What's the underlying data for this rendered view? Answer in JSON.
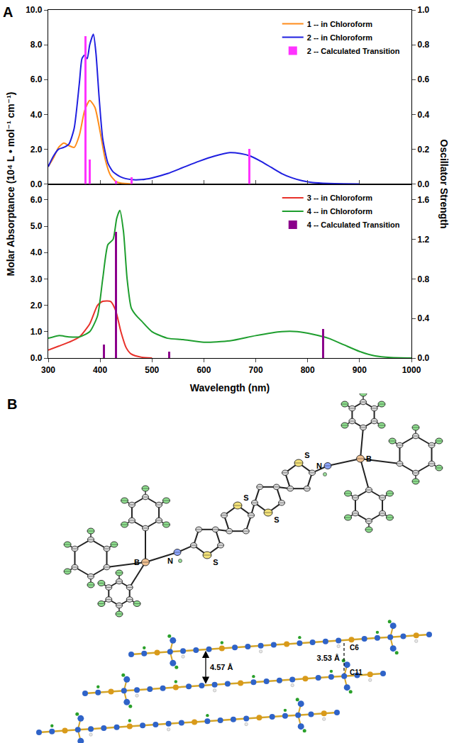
{
  "panel_labels": [
    "A",
    "B"
  ],
  "axis_titles": {
    "x": "Wavelength (nm)",
    "y": "Molar Absorptance (10⁴ L • mol⁻¹ cm⁻¹)",
    "y2": "Oscillator Strength"
  },
  "chart_data": [
    {
      "type": "line",
      "legend": "upper right",
      "grid": false,
      "tick_labels": "y",
      "xlim": [
        300,
        1000
      ],
      "xticks": [
        300,
        400,
        500,
        600,
        700,
        800,
        900,
        1000
      ],
      "ylim": [
        0,
        10
      ],
      "yticks": [
        {
          "value": 0,
          "label": "0.0"
        },
        {
          "value": 2,
          "label": "2.0"
        },
        {
          "value": 4,
          "label": "4.0"
        },
        {
          "value": 6,
          "label": "6.0"
        },
        {
          "value": 8,
          "label": "8.0"
        },
        {
          "value": 10,
          "label": "10.0"
        }
      ],
      "y2lim": [
        0,
        1
      ],
      "y2ticks": [
        {
          "value": 0,
          "label": "0.0"
        },
        0.2,
        0.4,
        0.6,
        0.8,
        {
          "value": 1,
          "label": "1.0"
        }
      ],
      "series": [
        {
          "name": "1 -- in Chloroform",
          "type": "line",
          "color": "#ff8c1a",
          "x": [
            300,
            310,
            320,
            330,
            340,
            350,
            360,
            370,
            380,
            390,
            400,
            410,
            420,
            430,
            440,
            460
          ],
          "values": [
            1.0,
            1.5,
            2.1,
            2.35,
            2.2,
            2.1,
            2.8,
            4.2,
            4.8,
            4.4,
            3.0,
            1.4,
            0.5,
            0.15,
            0.05,
            0
          ]
        },
        {
          "name": "2 -- in Chloroform",
          "type": "line",
          "color": "#1f1fe0",
          "x": [
            300,
            310,
            320,
            330,
            340,
            350,
            360,
            365,
            370,
            375,
            380,
            387,
            392,
            398,
            405,
            415,
            425,
            440,
            460,
            480,
            500,
            530,
            560,
            590,
            620,
            650,
            670,
            690,
            710,
            730,
            750,
            770,
            790,
            810,
            840,
            870,
            900
          ],
          "values": [
            1.0,
            1.6,
            2.0,
            2.1,
            2.3,
            3.2,
            5.8,
            7.2,
            7.4,
            7.2,
            8.0,
            8.6,
            7.5,
            5.0,
            2.6,
            1.2,
            0.7,
            0.4,
            0.25,
            0.25,
            0.35,
            0.6,
            0.95,
            1.3,
            1.6,
            1.8,
            1.75,
            1.6,
            1.3,
            0.95,
            0.6,
            0.35,
            0.18,
            0.08,
            0.03,
            0.01,
            0
          ]
        },
        {
          "name": "2 -- Calculated Transition",
          "type": "bar",
          "axis": "y2",
          "color": "#ff33ff",
          "x": [
            372,
            380,
            430,
            461,
            688
          ],
          "values": [
            0.85,
            0.14,
            0.02,
            0.04,
            0.2
          ]
        }
      ]
    },
    {
      "type": "line",
      "legend": "upper right",
      "grid": false,
      "xlim": [
        300,
        1000
      ],
      "xticks": [
        300,
        400,
        500,
        600,
        700,
        800,
        900,
        1000
      ],
      "ylim": [
        0,
        6.6
      ],
      "yticks": [
        {
          "value": 0,
          "label": "0.0"
        },
        {
          "value": 1,
          "label": "1.0"
        },
        {
          "value": 2,
          "label": "2.0"
        },
        {
          "value": 3,
          "label": "3.0"
        },
        {
          "value": 4,
          "label": "4.0"
        },
        {
          "value": 5,
          "label": "5.0"
        },
        {
          "value": 6,
          "label": "6.0"
        }
      ],
      "y2lim": [
        0,
        1.76
      ],
      "y2ticks": [
        {
          "value": 0,
          "label": "0.0"
        },
        0.4,
        0.8,
        1.2,
        1.6
      ],
      "series": [
        {
          "name": "3 -- in Chloroform",
          "type": "line",
          "color": "#e8312a",
          "x": [
            300,
            320,
            340,
            360,
            380,
            395,
            405,
            420,
            430,
            440,
            450,
            460,
            480,
            500
          ],
          "values": [
            0.3,
            0.45,
            0.6,
            0.8,
            1.3,
            2.0,
            2.15,
            2.15,
            1.8,
            1.0,
            0.4,
            0.15,
            0.03,
            0
          ]
        },
        {
          "name": "4 -- in Chloroform",
          "type": "line",
          "color": "#1e9e2e",
          "x": [
            300,
            320,
            340,
            360,
            380,
            395,
            405,
            415,
            425,
            432,
            438,
            445,
            452,
            460,
            470,
            480,
            500,
            530,
            560,
            600,
            650,
            700,
            750,
            780,
            810,
            840,
            870,
            900,
            930,
            960,
            1000
          ],
          "values": [
            0.75,
            0.85,
            0.8,
            0.8,
            1.0,
            1.6,
            3.0,
            4.3,
            4.5,
            5.3,
            5.6,
            4.8,
            3.0,
            1.9,
            1.6,
            1.4,
            1.0,
            0.75,
            0.7,
            0.6,
            0.65,
            0.85,
            1.0,
            1.0,
            0.9,
            0.75,
            0.5,
            0.25,
            0.08,
            0.02,
            0
          ]
        },
        {
          "name": "4 -- Calculated Transition",
          "type": "bar",
          "axis": "y2",
          "color": "#8b008b",
          "x": [
            407,
            430,
            533,
            830
          ],
          "values": [
            0.14,
            1.28,
            0.07,
            0.3
          ]
        }
      ]
    }
  ],
  "structure": {
    "molecule": {
      "atom_labels": [
        "S",
        "S",
        "S",
        "S",
        "N",
        "N",
        "B",
        "B"
      ]
    },
    "packing": {
      "interlayer_distance": "4.57 Å",
      "contact_distance": "3.53 Å",
      "contact_atoms": [
        "C6",
        "C11"
      ]
    }
  }
}
